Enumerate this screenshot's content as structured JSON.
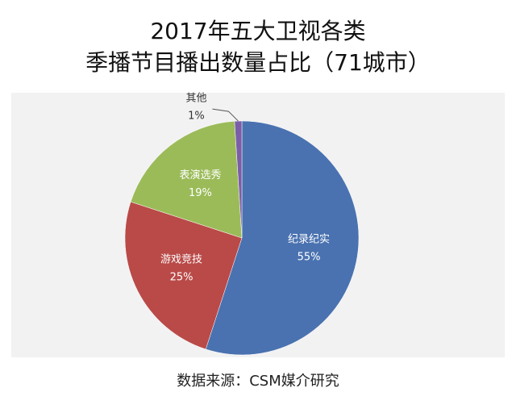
{
  "chart_data": {
    "type": "pie",
    "title": [
      "2017年五大卫视各类",
      "季播节目播出数量占比（71城市）"
    ],
    "categories": [
      "纪录纪实",
      "游戏竞技",
      "表演选秀",
      "其他"
    ],
    "values": [
      55,
      25,
      19,
      1
    ],
    "value_labels": [
      "55%",
      "25%",
      "19%",
      "1%"
    ],
    "colors": [
      "#4a72b0",
      "#b94a48",
      "#9bbb59",
      "#7b5ea7"
    ],
    "source": "数据来源：CSM媒介研究"
  }
}
